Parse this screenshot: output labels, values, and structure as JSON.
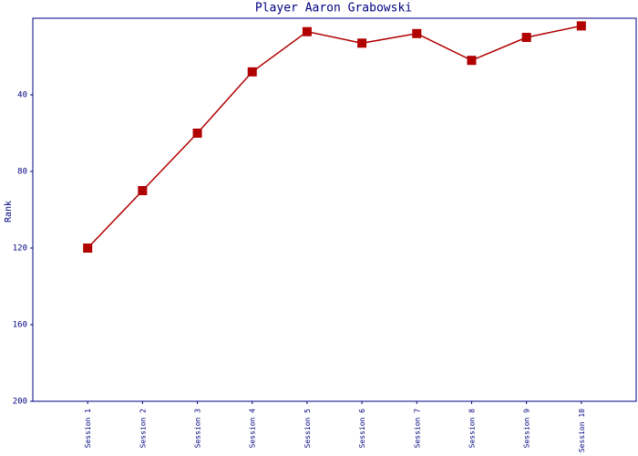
{
  "chart_data": {
    "type": "line",
    "title": "Player Aaron Grabowski",
    "ylabel": "Rank",
    "categories": [
      "Session 1",
      "Session 2",
      "Session 3",
      "Session 4",
      "Session 5",
      "Session 6",
      "Session 7",
      "Session 8",
      "Session 9",
      "Session 10"
    ],
    "series": [
      {
        "name": "Rank",
        "color": "#b00000",
        "values": [
          120,
          90,
          60,
          28,
          7,
          13,
          8,
          22,
          10,
          4
        ]
      }
    ],
    "ylim": [
      0,
      200
    ],
    "yticks": [
      40,
      80,
      120,
      160,
      200
    ],
    "y_inverted": true
  }
}
